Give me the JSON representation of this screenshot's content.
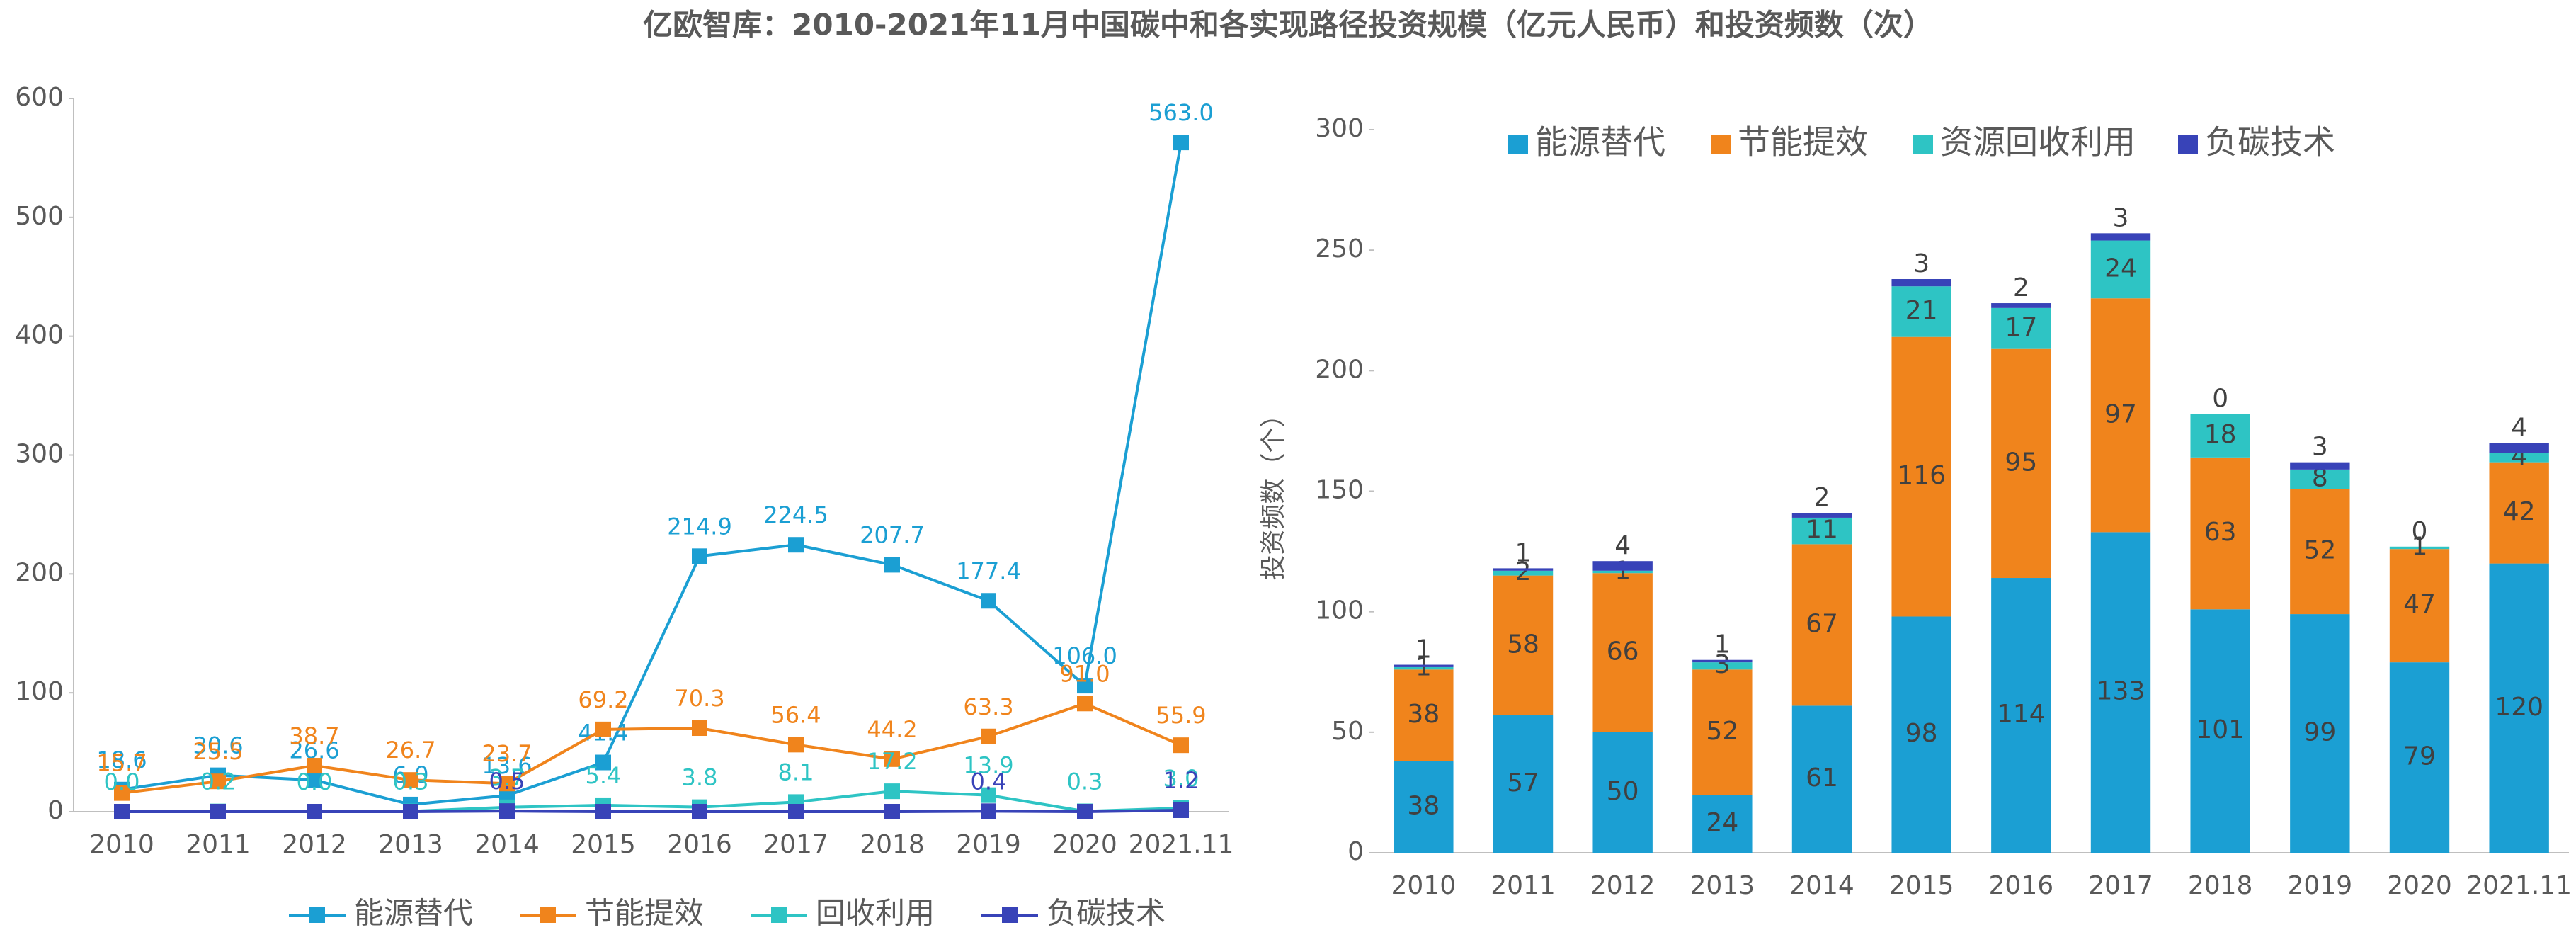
{
  "title": "亿欧智库：2010-2021年11月中国碳中和各实现路径投资规模（亿元人民币）和投资频数（次）",
  "chart_data": [
    {
      "type": "line",
      "legend": "bottom",
      "categories": [
        "2010",
        "2011",
        "2012",
        "2013",
        "2014",
        "2015",
        "2016",
        "2017",
        "2018",
        "2019",
        "2020",
        "2021.11"
      ],
      "ylim": [
        0,
        600
      ],
      "yticks": [
        0,
        100,
        200,
        300,
        400,
        500,
        600
      ],
      "series": [
        {
          "name": "能源替代",
          "color": "#1b9fd3",
          "values": [
            18.6,
            30.6,
            26.6,
            6.0,
            13.6,
            41.4,
            214.9,
            224.5,
            207.7,
            177.4,
            106.0,
            563.0
          ],
          "value_labels": [
            "18.6",
            "30.6",
            "26.6",
            "6.0",
            "13.6",
            "41.4",
            "214.9",
            "224.5",
            "207.7",
            "177.4",
            "106.0",
            "563.0"
          ]
        },
        {
          "name": "节能提效",
          "color": "#f0841c",
          "values": [
            15.7,
            25.5,
            38.7,
            26.7,
            23.7,
            69.2,
            70.3,
            56.4,
            44.2,
            63.3,
            91.0,
            55.9
          ],
          "value_labels": [
            "15.7",
            "25.5",
            "38.7",
            "26.7",
            "23.7",
            "69.2",
            "70.3",
            "56.4",
            "44.2",
            "63.3",
            "91.0",
            "55.9"
          ]
        },
        {
          "name": "回收利用",
          "color": "#2ec4c4",
          "values": [
            0.0,
            0.2,
            0.0,
            0.3,
            3.7,
            5.4,
            3.8,
            8.1,
            17.2,
            13.9,
            0.3,
            3.0
          ],
          "value_labels": [
            "0.0",
            "0.2",
            "0.0",
            "0.3",
            "3.7",
            "5.4",
            "3.8",
            "8.1",
            "17.2",
            "13.9",
            "0.3",
            "3.0"
          ]
        },
        {
          "name": "负碳技术",
          "color": "#3843b8",
          "values": [
            0,
            0,
            0,
            0,
            0.5,
            0,
            0,
            0,
            0,
            0.4,
            0,
            1.2
          ],
          "value_labels": [
            null,
            null,
            null,
            null,
            "0.5",
            null,
            null,
            null,
            null,
            "0.4",
            null,
            "1.2"
          ]
        }
      ]
    },
    {
      "type": "bar",
      "stacked": true,
      "legend": "top",
      "ylabel": "投资频数（个）",
      "categories": [
        "2010",
        "2011",
        "2012",
        "2013",
        "2014",
        "2015",
        "2016",
        "2017",
        "2018",
        "2019",
        "2020",
        "2021.11"
      ],
      "ylim": [
        0,
        300
      ],
      "yticks": [
        0,
        50,
        100,
        150,
        200,
        250,
        300
      ],
      "series": [
        {
          "name": "能源替代",
          "color": "#1b9fd3",
          "values": [
            38,
            57,
            50,
            24,
            61,
            98,
            114,
            133,
            101,
            99,
            79,
            120
          ]
        },
        {
          "name": "节能提效",
          "color": "#f0841c",
          "values": [
            38,
            58,
            66,
            52,
            67,
            116,
            95,
            97,
            63,
            52,
            47,
            42
          ]
        },
        {
          "name": "资源回收利用",
          "color": "#2ec4c4",
          "values": [
            1,
            2,
            1,
            3,
            11,
            21,
            17,
            24,
            18,
            8,
            1,
            4
          ]
        },
        {
          "name": "负碳技术",
          "color": "#3843b8",
          "values": [
            1,
            1,
            4,
            1,
            2,
            3,
            2,
            3,
            0,
            3,
            0,
            4
          ]
        }
      ]
    }
  ]
}
